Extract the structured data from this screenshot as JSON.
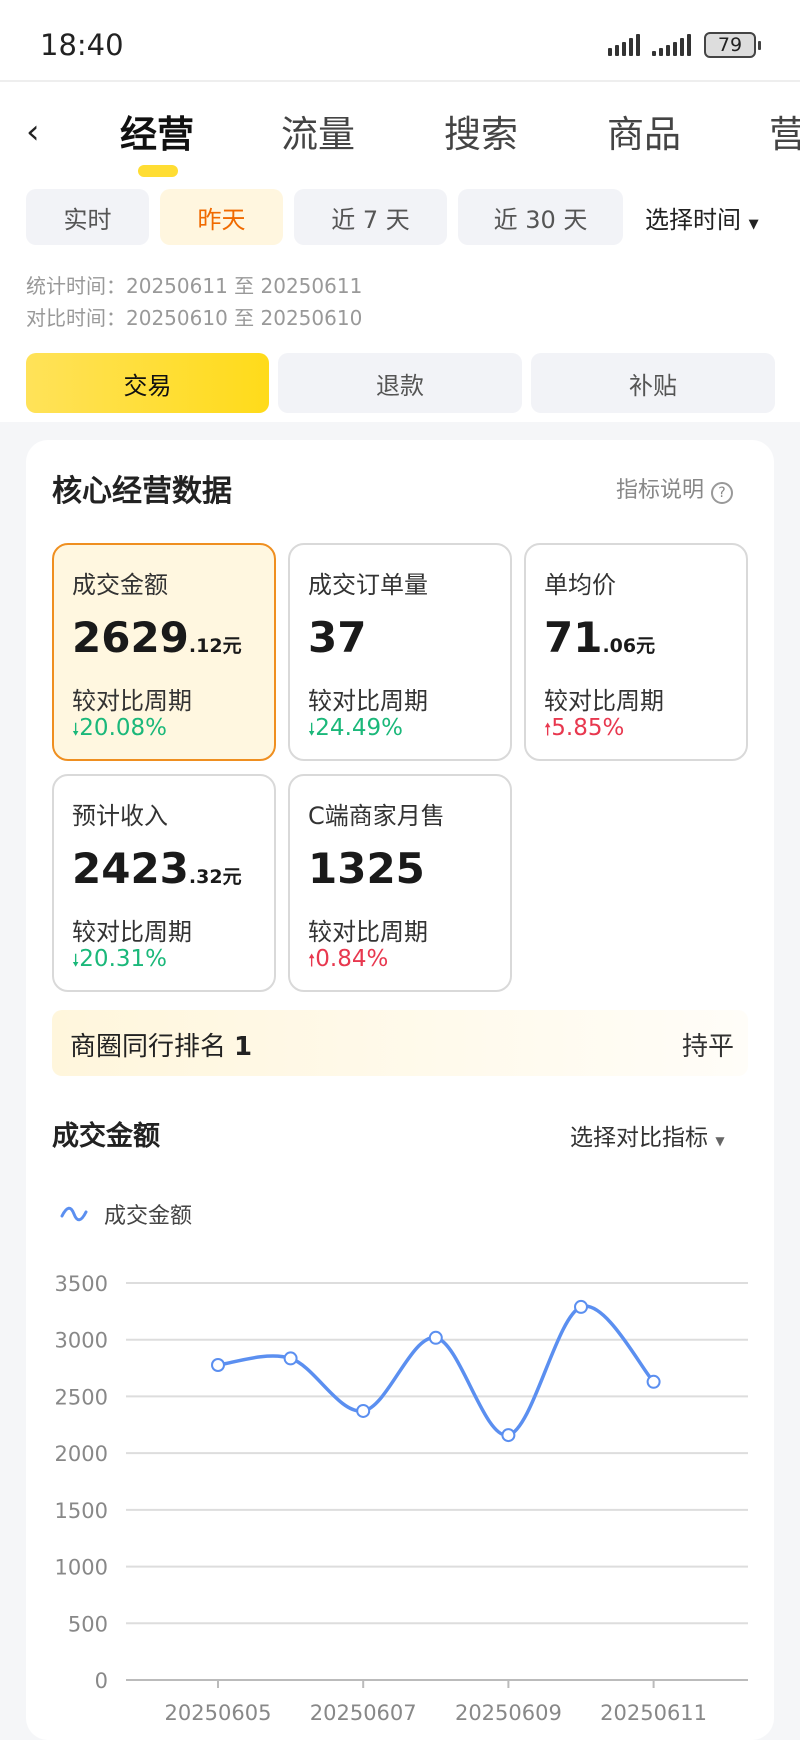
{
  "status_bar": {
    "time": "18:40",
    "battery": "79"
  },
  "nav": {
    "tabs": [
      "经营",
      "流量",
      "搜索",
      "商品",
      "营"
    ]
  },
  "time_filter": {
    "options": [
      "实时",
      "昨天",
      "近 7 天",
      "近 30 天"
    ],
    "selected": "昨天",
    "picker": "选择时间"
  },
  "period": {
    "stat": "统计时间：20250611 至 20250611",
    "compare": "对比时间：20250610 至 20250610"
  },
  "segments": {
    "items": [
      "交易",
      "退款",
      "补贴"
    ],
    "selected": "交易"
  },
  "core": {
    "title": "核心经营数据",
    "help": "指标说明",
    "metrics": [
      {
        "label": "成交金额",
        "int": "2629",
        "dec": ".12元",
        "compare": "较对比周期",
        "change": "20.08%",
        "dir": "down"
      },
      {
        "label": "成交订单量",
        "int": "37",
        "dec": "",
        "compare": "较对比周期",
        "change": "24.49%",
        "dir": "down"
      },
      {
        "label": "单均价",
        "int": "71",
        "dec": ".06元",
        "compare": "较对比周期",
        "change": "5.85%",
        "dir": "up"
      },
      {
        "label": "预计收入",
        "int": "2423",
        "dec": ".32元",
        "compare": "较对比周期",
        "change": "20.31%",
        "dir": "down"
      },
      {
        "label": "C端商家月售",
        "int": "1325",
        "dec": "",
        "compare": "较对比周期",
        "change": "0.84%",
        "dir": "up"
      }
    ],
    "rank_label": "商圈同行排名",
    "rank_value": "1",
    "rank_status": "持平"
  },
  "chart_section": {
    "title": "成交金额",
    "compare_picker": "选择对比指标"
  },
  "chart_data": {
    "type": "line",
    "smooth": true,
    "x": [
      "20250605",
      "20250606",
      "20250607",
      "20250608",
      "20250609",
      "20250610",
      "20250611"
    ],
    "x_tick_labels": [
      "20250605",
      "20250607",
      "20250609",
      "20250611"
    ],
    "series": [
      {
        "name": "成交金额",
        "values": [
          2777,
          2835,
          2372,
          3017,
          2159,
          3289,
          2629
        ],
        "color": "#5b8ff0"
      }
    ],
    "y_ticks": [
      0,
      500,
      1000,
      1500,
      2000,
      2500,
      3000,
      3500
    ],
    "ylim": [
      0,
      3500
    ],
    "grid": true,
    "legend": "top-left"
  }
}
